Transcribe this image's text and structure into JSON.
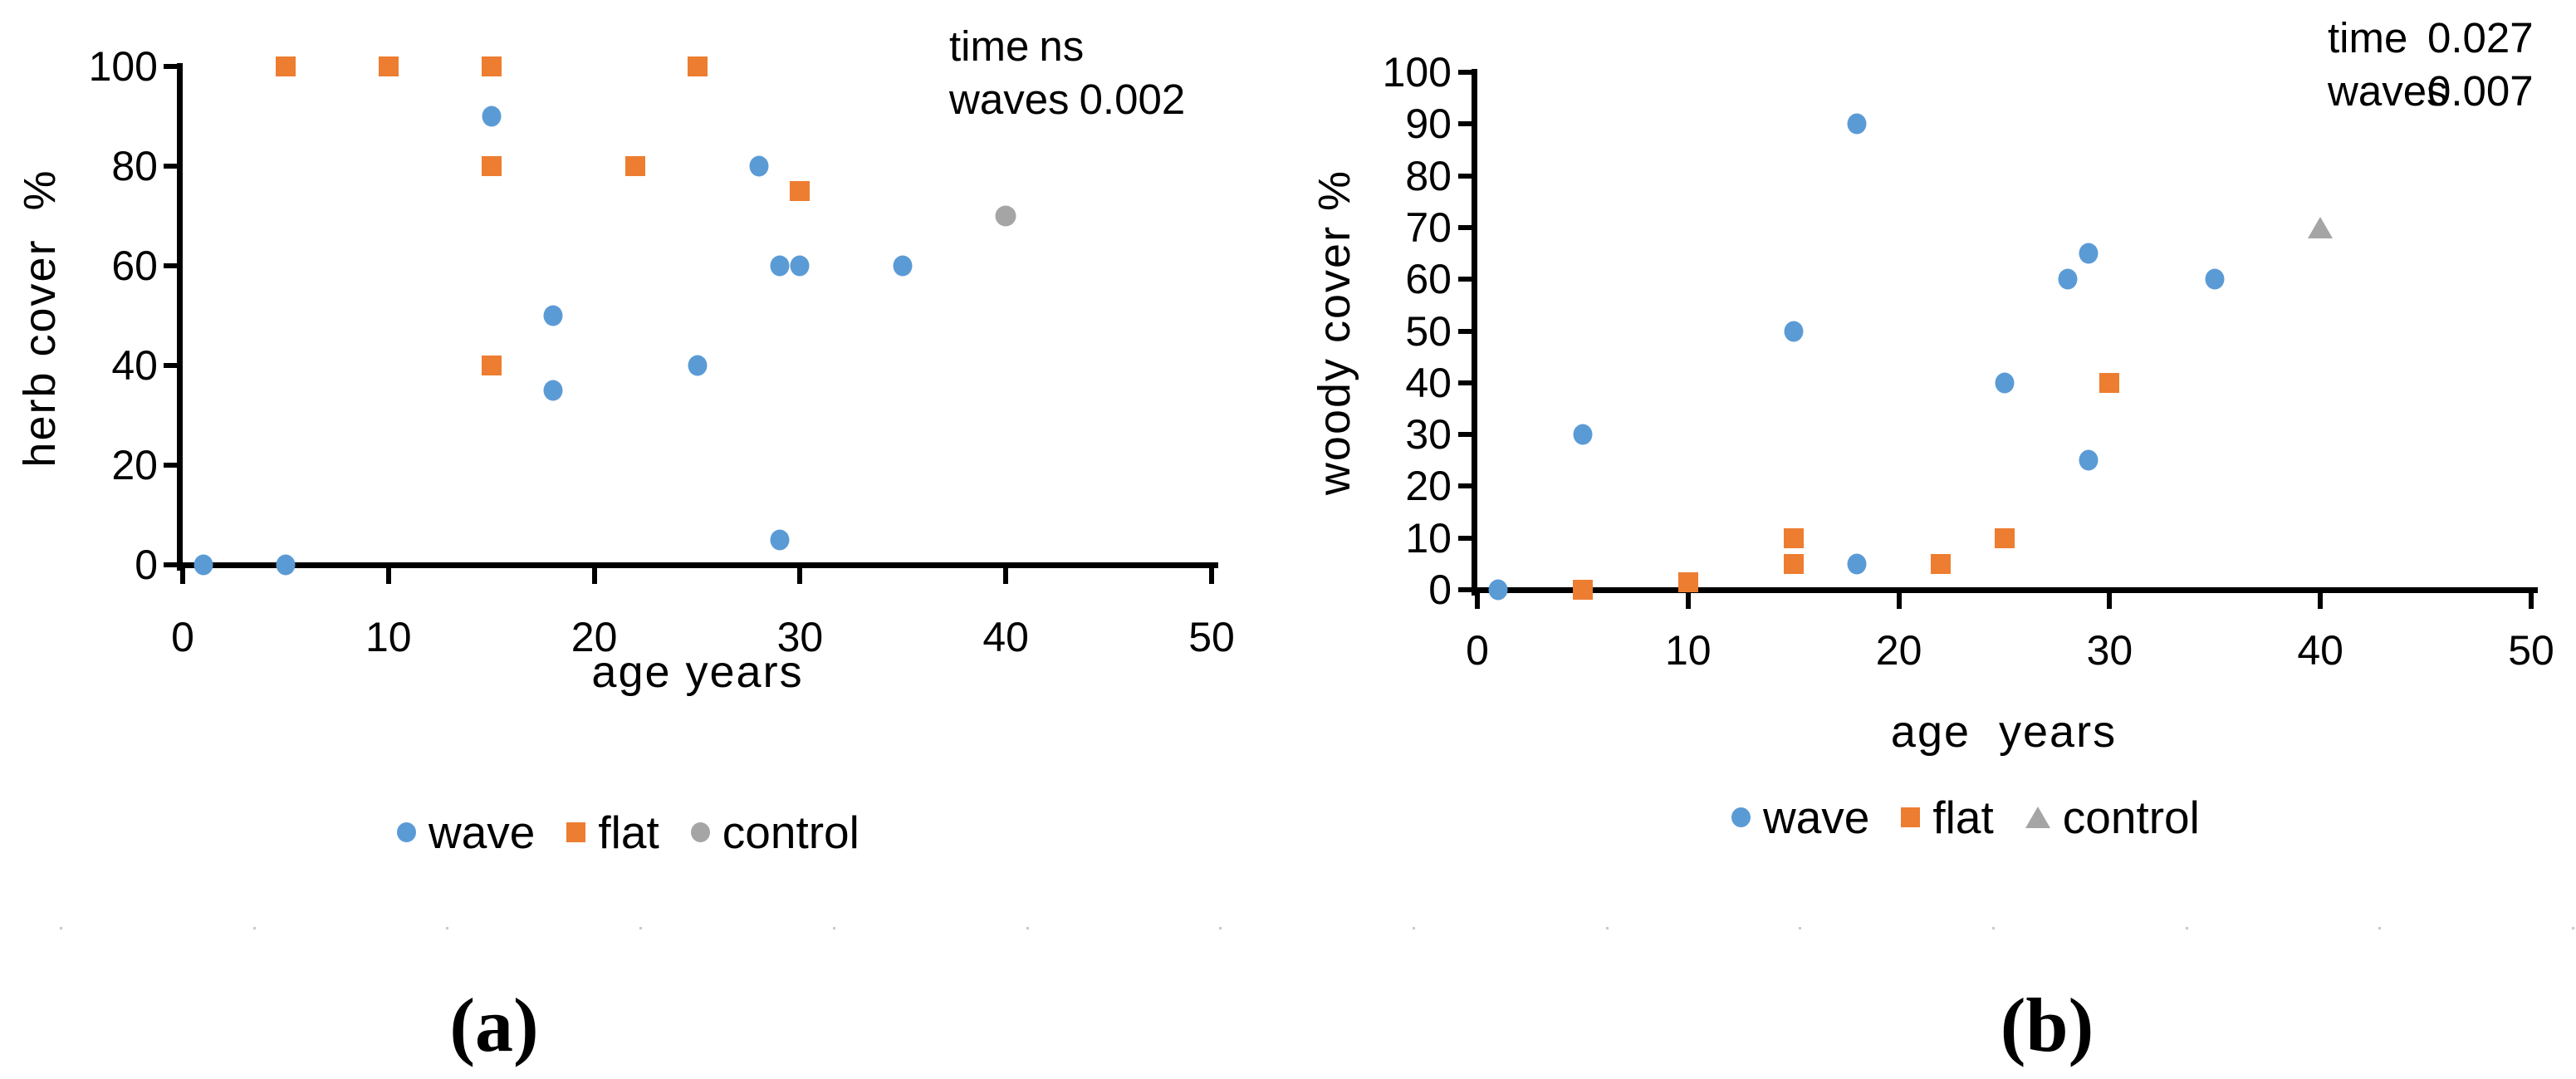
{
  "colors": {
    "wave": "#5B9BD5",
    "flat": "#ED7D31",
    "control": "#A5A5A5",
    "axis": "#000000"
  },
  "chart_data": [
    {
      "type": "scatter",
      "panel": "a",
      "caption": "(a)",
      "xlabel": "age years",
      "ylabel": "herb cover  %",
      "xlim": [
        0,
        50
      ],
      "ylim": [
        0,
        100
      ],
      "x_ticks": [
        0,
        10,
        20,
        30,
        40,
        50
      ],
      "y_ticks": [
        0,
        20,
        40,
        60,
        80,
        100
      ],
      "grid": false,
      "legend_position": "bottom",
      "annotation_rows": [
        {
          "label": "time",
          "value": "ns"
        },
        {
          "label": "waves",
          "value": "0.002"
        }
      ],
      "legend": [
        {
          "name": "wave",
          "marker": "circle",
          "color": "#5B9BD5"
        },
        {
          "name": "flat",
          "marker": "square",
          "color": "#ED7D31"
        },
        {
          "name": "control",
          "marker": "circle",
          "color": "#A5A5A5"
        }
      ],
      "series": [
        {
          "name": "wave",
          "marker": "circle",
          "color": "#5B9BD5",
          "points": [
            [
              1,
              0
            ],
            [
              5,
              0
            ],
            [
              15,
              90
            ],
            [
              18,
              50
            ],
            [
              18,
              35
            ],
            [
              25,
              40
            ],
            [
              28,
              80
            ],
            [
              29,
              60
            ],
            [
              30,
              60
            ],
            [
              35,
              60
            ],
            [
              29,
              5
            ]
          ]
        },
        {
          "name": "flat",
          "marker": "square",
          "color": "#ED7D31",
          "points": [
            [
              5,
              100
            ],
            [
              10,
              100
            ],
            [
              15,
              100
            ],
            [
              25,
              100
            ],
            [
              15,
              80
            ],
            [
              22,
              80
            ],
            [
              30,
              75
            ],
            [
              15,
              40
            ]
          ]
        },
        {
          "name": "control",
          "marker": "circle",
          "color": "#A5A5A5",
          "points": [
            [
              40,
              70
            ]
          ]
        }
      ]
    },
    {
      "type": "scatter",
      "panel": "b",
      "caption": "(b)",
      "xlabel": "age  years",
      "ylabel": "woody cover %",
      "xlim": [
        0,
        50
      ],
      "ylim": [
        0,
        100
      ],
      "x_ticks": [
        0,
        10,
        20,
        30,
        40,
        50
      ],
      "y_ticks": [
        0,
        10,
        20,
        30,
        40,
        50,
        60,
        70,
        80,
        90,
        100
      ],
      "grid": false,
      "legend_position": "bottom",
      "annotation_rows": [
        {
          "label": "time",
          "value": "0.027"
        },
        {
          "label": "waves",
          "value": "0.007"
        }
      ],
      "legend": [
        {
          "name": "wave",
          "marker": "circle",
          "color": "#5B9BD5"
        },
        {
          "name": "flat",
          "marker": "square",
          "color": "#ED7D31"
        },
        {
          "name": "control",
          "marker": "triangle",
          "color": "#A5A5A5"
        }
      ],
      "series": [
        {
          "name": "wave",
          "marker": "circle",
          "color": "#5B9BD5",
          "points": [
            [
              1,
              0
            ],
            [
              5,
              30
            ],
            [
              15,
              50
            ],
            [
              18,
              90
            ],
            [
              18,
              5
            ],
            [
              25,
              40
            ],
            [
              28,
              60
            ],
            [
              29,
              65
            ],
            [
              29,
              25
            ],
            [
              35,
              60
            ]
          ]
        },
        {
          "name": "flat",
          "marker": "square",
          "color": "#ED7D31",
          "points": [
            [
              5,
              0
            ],
            [
              10,
              1.5
            ],
            [
              15,
              10
            ],
            [
              15,
              5
            ],
            [
              22,
              5
            ],
            [
              25,
              10
            ],
            [
              30,
              40
            ]
          ]
        },
        {
          "name": "control",
          "marker": "triangle",
          "color": "#A5A5A5",
          "points": [
            [
              40,
              70
            ]
          ]
        }
      ]
    }
  ]
}
